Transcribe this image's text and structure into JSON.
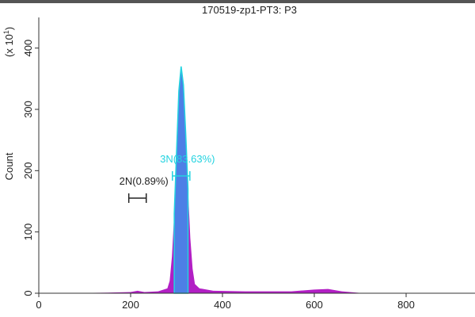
{
  "chart_data": {
    "type": "area",
    "title": "170519-zp1-PT3: P3",
    "y_label": "Count",
    "y_multiplier": {
      "base": "(x 10",
      "power": "1",
      "close": ")"
    },
    "x": [
      0,
      100,
      150,
      200,
      215,
      230,
      260,
      280,
      285,
      290,
      295,
      300,
      305,
      310,
      315,
      320,
      325,
      330,
      335,
      340,
      350,
      380,
      450,
      550,
      600,
      630,
      660,
      700,
      800,
      950
    ],
    "values": [
      0,
      0.5,
      1,
      2,
      4,
      2,
      3,
      8,
      20,
      60,
      130,
      230,
      330,
      370,
      340,
      260,
      170,
      90,
      40,
      15,
      8,
      4,
      3,
      3,
      6,
      7,
      3,
      0.5,
      0,
      0
    ],
    "color": "#b21fc4",
    "gate_color": "#4d7fe6",
    "outline_color": "#22d3e0",
    "xlim": [
      0,
      950
    ],
    "ylim": [
      0,
      450
    ],
    "xticks": [
      0,
      200,
      400,
      600,
      800
    ],
    "yticks": [
      0,
      100,
      200,
      300,
      400
    ],
    "gates": [
      {
        "label": "2N(0.89%)",
        "range": [
          196,
          234
        ],
        "color": "#222222"
      },
      {
        "label": "3N(83.63%)",
        "range": [
          291,
          329
        ],
        "color": "#22d3e0"
      }
    ]
  }
}
